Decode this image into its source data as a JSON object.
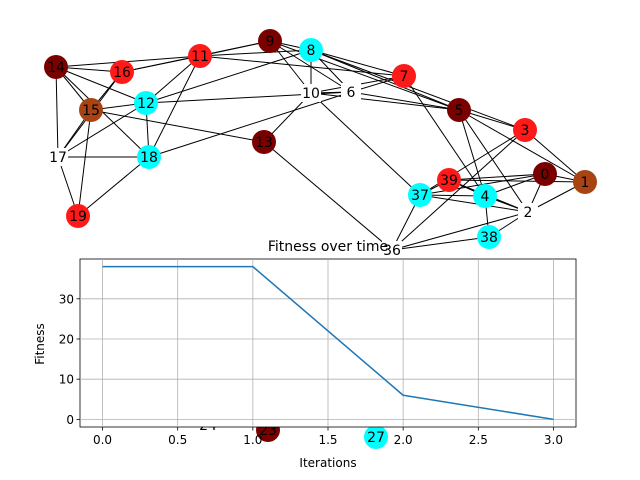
{
  "graph": {
    "nodes": [
      {
        "id": "14",
        "color": "#7a0000"
      },
      {
        "id": "16",
        "color": "#ff1a1a"
      },
      {
        "id": "11",
        "color": "#ff1a1a"
      },
      {
        "id": "9",
        "color": "#7a0000"
      },
      {
        "id": "8",
        "color": "#00ffff"
      },
      {
        "id": "7",
        "color": "#ff1a1a"
      },
      {
        "id": "10",
        "color": "none"
      },
      {
        "id": "6",
        "color": "none"
      },
      {
        "id": "5",
        "color": "#7a0000"
      },
      {
        "id": "3",
        "color": "#ff1a1a"
      },
      {
        "id": "15",
        "color": "#a84413"
      },
      {
        "id": "12",
        "color": "#00ffff"
      },
      {
        "id": "17",
        "color": "none"
      },
      {
        "id": "18",
        "color": "#00ffff"
      },
      {
        "id": "13",
        "color": "#7a0000"
      },
      {
        "id": "0",
        "color": "#7a0000"
      },
      {
        "id": "1",
        "color": "#a84413"
      },
      {
        "id": "39",
        "color": "#ff1a1a"
      },
      {
        "id": "37",
        "color": "#00ffff"
      },
      {
        "id": "4",
        "color": "#00ffff"
      },
      {
        "id": "2",
        "color": "none"
      },
      {
        "id": "19",
        "color": "#ff1a1a"
      },
      {
        "id": "38",
        "color": "#00ffff"
      },
      {
        "id": "36",
        "color": "none"
      },
      {
        "id": "24",
        "color": "none"
      },
      {
        "id": "23",
        "color": "#7a0000"
      },
      {
        "id": "27",
        "color": "#00ffff"
      }
    ],
    "edges": [
      [
        "14",
        "16"
      ],
      [
        "14",
        "11"
      ],
      [
        "14",
        "12"
      ],
      [
        "14",
        "17"
      ],
      [
        "14",
        "15"
      ],
      [
        "14",
        "18"
      ],
      [
        "16",
        "11"
      ],
      [
        "16",
        "9"
      ],
      [
        "16",
        "15"
      ],
      [
        "16",
        "17"
      ],
      [
        "11",
        "9"
      ],
      [
        "11",
        "8"
      ],
      [
        "11",
        "7"
      ],
      [
        "11",
        "12"
      ],
      [
        "11",
        "18"
      ],
      [
        "9",
        "8"
      ],
      [
        "9",
        "10"
      ],
      [
        "9",
        "6"
      ],
      [
        "9",
        "5"
      ],
      [
        "8",
        "7"
      ],
      [
        "8",
        "10"
      ],
      [
        "8",
        "6"
      ],
      [
        "8",
        "5"
      ],
      [
        "8",
        "3"
      ],
      [
        "8",
        "12"
      ],
      [
        "7",
        "10"
      ],
      [
        "7",
        "6"
      ],
      [
        "7",
        "4"
      ],
      [
        "10",
        "6"
      ],
      [
        "10",
        "5"
      ],
      [
        "10",
        "13"
      ],
      [
        "10",
        "37"
      ],
      [
        "6",
        "5"
      ],
      [
        "6",
        "12"
      ],
      [
        "6",
        "18"
      ],
      [
        "5",
        "3"
      ],
      [
        "5",
        "4"
      ],
      [
        "5",
        "2"
      ],
      [
        "5",
        "1"
      ],
      [
        "3",
        "1"
      ],
      [
        "3",
        "37"
      ],
      [
        "3",
        "36"
      ],
      [
        "15",
        "12"
      ],
      [
        "15",
        "13"
      ],
      [
        "15",
        "17"
      ],
      [
        "15",
        "19"
      ],
      [
        "12",
        "18"
      ],
      [
        "12",
        "17"
      ],
      [
        "17",
        "18"
      ],
      [
        "17",
        "19"
      ],
      [
        "18",
        "19"
      ],
      [
        "13",
        "36"
      ],
      [
        "0",
        "1"
      ],
      [
        "0",
        "39"
      ],
      [
        "0",
        "37"
      ],
      [
        "0",
        "4"
      ],
      [
        "0",
        "2"
      ],
      [
        "1",
        "39"
      ],
      [
        "1",
        "2"
      ],
      [
        "39",
        "37"
      ],
      [
        "39",
        "4"
      ],
      [
        "39",
        "2"
      ],
      [
        "37",
        "4"
      ],
      [
        "37",
        "2"
      ],
      [
        "37",
        "36"
      ],
      [
        "4",
        "2"
      ],
      [
        "4",
        "38"
      ],
      [
        "2",
        "38"
      ],
      [
        "2",
        "36"
      ],
      [
        "38",
        "36"
      ]
    ]
  },
  "chart_data": {
    "type": "line",
    "title": "Fitness over time",
    "xlabel": "Iterations",
    "ylabel": "Fitness",
    "x": [
      0,
      1,
      2,
      3
    ],
    "series": [
      {
        "values": [
          38,
          38,
          6,
          0
        ],
        "color": "#1f77b4"
      }
    ],
    "xlim": [
      -0.15,
      3.15
    ],
    "ylim": [
      -1.9,
      39.9
    ],
    "xticks": [
      "0.0",
      "0.5",
      "1.0",
      "1.5",
      "2.0",
      "2.5",
      "3.0"
    ],
    "yticks": [
      "0",
      "10",
      "20",
      "30"
    ],
    "grid": true
  }
}
